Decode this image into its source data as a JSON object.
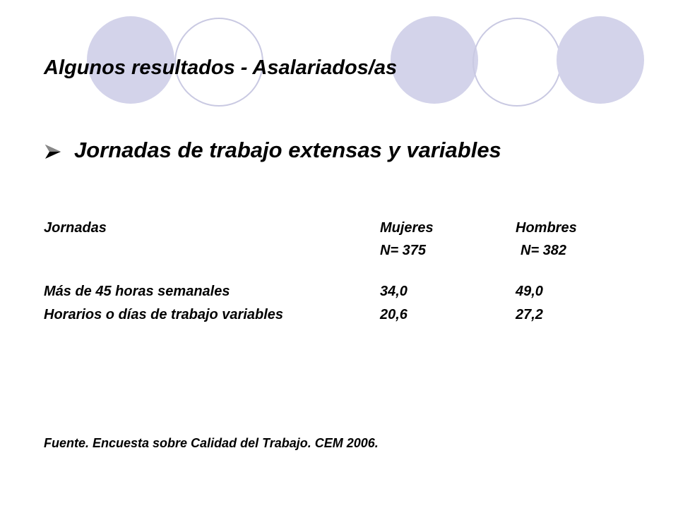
{
  "title": "Algunos resultados - Asalariados/as",
  "bullet": "Jornadas de trabajo extensas y variables",
  "table": {
    "header": [
      "Jornadas",
      "Mujeres",
      "Hombres"
    ],
    "subheader": [
      "N= 375",
      "N= 382"
    ],
    "rows": [
      [
        "Más de 45 horas semanales",
        "34,0",
        "49,0"
      ],
      [
        "Horarios o días de trabajo variables",
        "20,6",
        "27,2"
      ]
    ]
  },
  "source": "Fuente. Encuesta sobre Calidad del Trabajo. CEM 2006."
}
